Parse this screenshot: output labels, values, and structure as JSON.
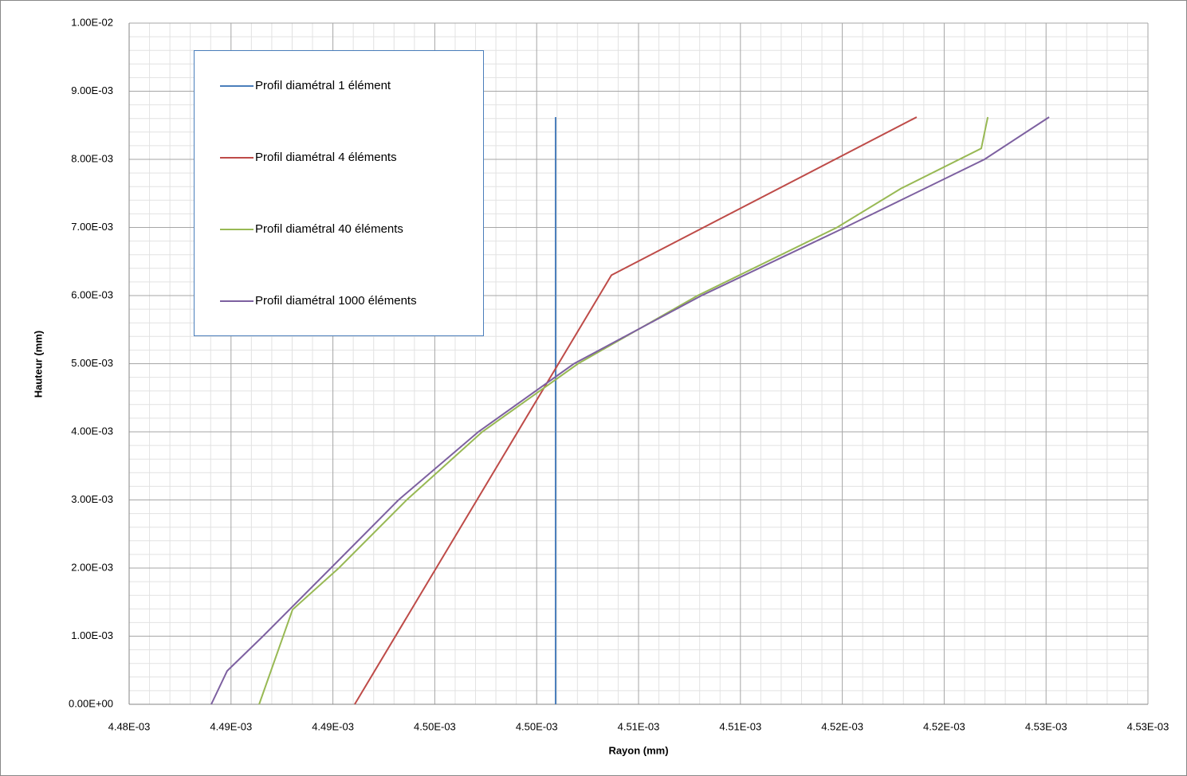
{
  "chart_data": {
    "type": "line",
    "x_label": "Rayon (mm)",
    "y_label": "Hauteur (mm)",
    "xlim": [
      0.00448,
      0.00453
    ],
    "xticks": [
      {
        "value": 0.00448,
        "label": "4.48E-03"
      },
      {
        "value": 0.004485,
        "label": "4.49E-03"
      },
      {
        "value": 0.00449,
        "label": "4.49E-03"
      },
      {
        "value": 0.004495,
        "label": "4.50E-03"
      },
      {
        "value": 0.0045,
        "label": "4.50E-03"
      },
      {
        "value": 0.004505,
        "label": "4.51E-03"
      },
      {
        "value": 0.00451,
        "label": "4.51E-03"
      },
      {
        "value": 0.004515,
        "label": "4.52E-03"
      },
      {
        "value": 0.00452,
        "label": "4.52E-03"
      },
      {
        "value": 0.004525,
        "label": "4.53E-03"
      },
      {
        "value": 0.00453,
        "label": "4.53E-03"
      }
    ],
    "ylim": [
      0,
      0.01
    ],
    "yticks": [
      {
        "value": 0,
        "label": "0.00E+00"
      },
      {
        "value": 0.001,
        "label": "1.00E-03"
      },
      {
        "value": 0.002,
        "label": "2.00E-03"
      },
      {
        "value": 0.003,
        "label": "3.00E-03"
      },
      {
        "value": 0.004,
        "label": "4.00E-03"
      },
      {
        "value": 0.005,
        "label": "5.00E-03"
      },
      {
        "value": 0.006,
        "label": "6.00E-03"
      },
      {
        "value": 0.007,
        "label": "7.00E-03"
      },
      {
        "value": 0.008,
        "label": "8.00E-03"
      },
      {
        "value": 0.009,
        "label": "9.00E-03"
      },
      {
        "value": 0.01,
        "label": "1.00E-02"
      }
    ],
    "grid": true,
    "legend": "upper left",
    "series": [
      {
        "name": "Profil diamétral 1 élément",
        "color": "#4a7ebb",
        "x": [
          0.00450093,
          0.00450093
        ],
        "values": [
          0,
          0.00862
        ]
      },
      {
        "name": "Profil diamétral 4 éléments",
        "color": "#be4b48",
        "x": [
          0.00449107,
          0.00450367,
          0.00451865
        ],
        "values": [
          0,
          0.0063,
          0.00862
        ]
      },
      {
        "name": "Profil diamétral 40 éléments",
        "color": "#98b954",
        "x": [
          0.00448638,
          0.00448802,
          0.00449029,
          0.00449362,
          0.00449733,
          0.00450203,
          0.0045079,
          0.00451474,
          0.00451787,
          0.00452182,
          0.00452214
        ],
        "values": [
          0,
          0.00139,
          0.002,
          0.003,
          0.004,
          0.005,
          0.006,
          0.007,
          0.00757,
          0.00816,
          0.00862
        ]
      },
      {
        "name": "Profil diamétral 1000 éléments",
        "color": "#7d60a0",
        "x": [
          0.00448403,
          0.00448481,
          0.00448657,
          0.0044899,
          0.00449322,
          0.00449714,
          0.00450183,
          0.00450809,
          0.00451513,
          0.00452198,
          0.00452515
        ],
        "values": [
          0,
          0.00049,
          0.001,
          0.002,
          0.003,
          0.004,
          0.005,
          0.006,
          0.007,
          0.008,
          0.00862
        ]
      }
    ]
  }
}
